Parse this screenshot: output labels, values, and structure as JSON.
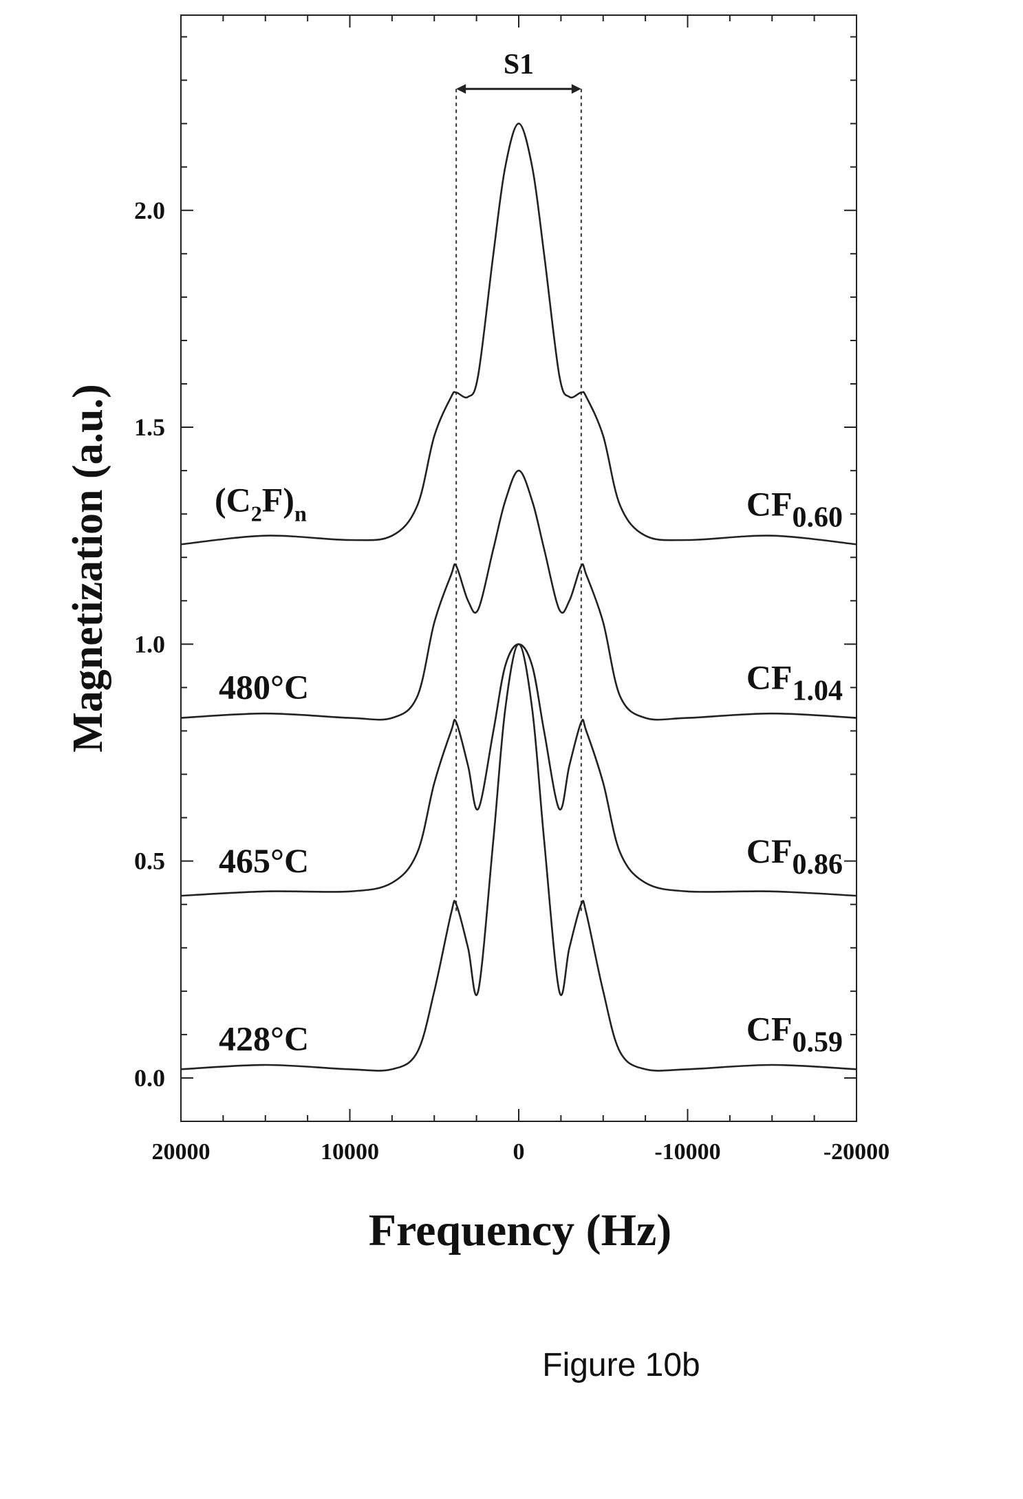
{
  "chart_data": {
    "type": "line",
    "xlabel": "Frequency (Hz)",
    "ylabel": "Magnetization (a.u.)",
    "xlim": [
      20000,
      -20000
    ],
    "ylim": [
      -0.1,
      2.45
    ],
    "x_reversed": true,
    "x_ticks": [
      20000,
      10000,
      0,
      -10000,
      -20000
    ],
    "x_tick_labels": [
      "20000",
      "10000",
      "0",
      "-10000",
      "-20000"
    ],
    "y_ticks": [
      0.0,
      0.5,
      1.0,
      1.5,
      2.0
    ],
    "y_tick_labels": [
      "0.0",
      "0.5",
      "1.0",
      "1.5",
      "2.0"
    ],
    "grid": false,
    "annotation": {
      "label": "S1",
      "x_range": [
        3700,
        -3700
      ]
    },
    "series": [
      {
        "left_label": "428°C",
        "right_label": {
          "base": "CF",
          "sub": "0.59"
        },
        "baseline": 0.02,
        "points": [
          [
            20000,
            0.02
          ],
          [
            15000,
            0.03
          ],
          [
            10000,
            0.02
          ],
          [
            7500,
            0.02
          ],
          [
            6000,
            0.06
          ],
          [
            5000,
            0.2
          ],
          [
            4000,
            0.38
          ],
          [
            3700,
            0.4
          ],
          [
            3000,
            0.3
          ],
          [
            2400,
            0.2
          ],
          [
            1500,
            0.55
          ],
          [
            800,
            0.85
          ],
          [
            0,
            1.0
          ],
          [
            -800,
            0.85
          ],
          [
            -1500,
            0.55
          ],
          [
            -2400,
            0.2
          ],
          [
            -3000,
            0.3
          ],
          [
            -3700,
            0.4
          ],
          [
            -4000,
            0.38
          ],
          [
            -5000,
            0.2
          ],
          [
            -6000,
            0.06
          ],
          [
            -7500,
            0.02
          ],
          [
            -10000,
            0.02
          ],
          [
            -15000,
            0.03
          ],
          [
            -20000,
            0.02
          ]
        ]
      },
      {
        "left_label": "465°C",
        "right_label": {
          "base": "CF",
          "sub": "0.86"
        },
        "baseline": 0.43,
        "points": [
          [
            20000,
            0.42
          ],
          [
            15000,
            0.43
          ],
          [
            10000,
            0.43
          ],
          [
            7500,
            0.45
          ],
          [
            6000,
            0.52
          ],
          [
            5000,
            0.68
          ],
          [
            4000,
            0.8
          ],
          [
            3700,
            0.82
          ],
          [
            3000,
            0.72
          ],
          [
            2400,
            0.62
          ],
          [
            1500,
            0.8
          ],
          [
            800,
            0.95
          ],
          [
            0,
            1.0
          ],
          [
            -800,
            0.95
          ],
          [
            -1500,
            0.8
          ],
          [
            -2400,
            0.62
          ],
          [
            -3000,
            0.72
          ],
          [
            -3700,
            0.82
          ],
          [
            -4000,
            0.8
          ],
          [
            -5000,
            0.68
          ],
          [
            -6000,
            0.52
          ],
          [
            -7500,
            0.45
          ],
          [
            -10000,
            0.43
          ],
          [
            -15000,
            0.43
          ],
          [
            -20000,
            0.42
          ]
        ]
      },
      {
        "left_label": "480°C",
        "right_label": {
          "base": "CF",
          "sub": "1.04"
        },
        "baseline": 0.83,
        "points": [
          [
            20000,
            0.83
          ],
          [
            15000,
            0.84
          ],
          [
            10000,
            0.83
          ],
          [
            7500,
            0.83
          ],
          [
            6000,
            0.88
          ],
          [
            5000,
            1.05
          ],
          [
            4000,
            1.16
          ],
          [
            3700,
            1.18
          ],
          [
            3000,
            1.1
          ],
          [
            2400,
            1.08
          ],
          [
            1500,
            1.22
          ],
          [
            800,
            1.33
          ],
          [
            0,
            1.4
          ],
          [
            -800,
            1.33
          ],
          [
            -1500,
            1.22
          ],
          [
            -2400,
            1.08
          ],
          [
            -3000,
            1.1
          ],
          [
            -3700,
            1.18
          ],
          [
            -4000,
            1.16
          ],
          [
            -5000,
            1.05
          ],
          [
            -6000,
            0.88
          ],
          [
            -7500,
            0.83
          ],
          [
            -10000,
            0.83
          ],
          [
            -15000,
            0.84
          ],
          [
            -20000,
            0.83
          ]
        ]
      },
      {
        "left_label": "(C2F)n",
        "right_label": {
          "base": "CF",
          "sub": "0.60"
        },
        "baseline": 1.23,
        "points": [
          [
            20000,
            1.23
          ],
          [
            15000,
            1.25
          ],
          [
            10000,
            1.24
          ],
          [
            7500,
            1.25
          ],
          [
            6000,
            1.32
          ],
          [
            5000,
            1.48
          ],
          [
            4000,
            1.57
          ],
          [
            3700,
            1.58
          ],
          [
            3000,
            1.57
          ],
          [
            2400,
            1.62
          ],
          [
            1500,
            1.9
          ],
          [
            800,
            2.1
          ],
          [
            0,
            2.2
          ],
          [
            -800,
            2.1
          ],
          [
            -1500,
            1.9
          ],
          [
            -2400,
            1.62
          ],
          [
            -3000,
            1.57
          ],
          [
            -3700,
            1.58
          ],
          [
            -4000,
            1.57
          ],
          [
            -5000,
            1.48
          ],
          [
            -6000,
            1.32
          ],
          [
            -7500,
            1.25
          ],
          [
            -10000,
            1.24
          ],
          [
            -15000,
            1.25
          ],
          [
            -20000,
            1.23
          ]
        ]
      }
    ]
  },
  "figure_caption": "Figure 10b",
  "c2f_label": {
    "open": "(C",
    "sub1": "2",
    "mid": "F)",
    "sub2": "n"
  }
}
